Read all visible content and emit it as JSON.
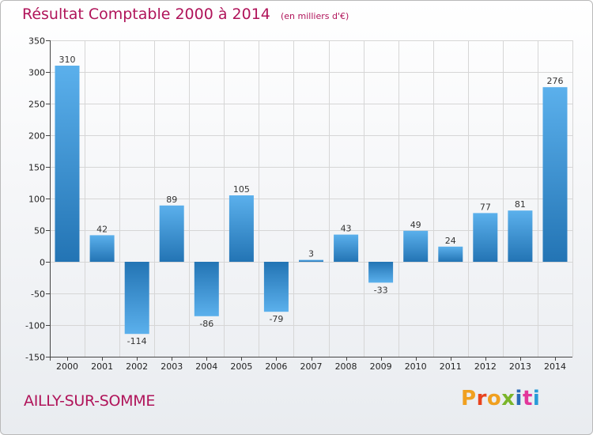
{
  "header": {
    "title": "Résultat Comptable 2000 à 2014",
    "subtitle": "(en milliers d'€)"
  },
  "footer": {
    "commune": "AILLY-SUR-SOMME",
    "brand_letters": [
      "P",
      "r",
      "o",
      "x",
      "i",
      "t",
      "i"
    ]
  },
  "colors": {
    "title": "#b0145a",
    "bar_light": "#5bb0ec",
    "bar_dark": "#2374b4",
    "grid": "#d6d6d6",
    "brand": [
      "#f0a020",
      "#e8431e",
      "#f0a020",
      "#7ab52a",
      "#2a6bb8",
      "#e2369a",
      "#2a9bd8"
    ]
  },
  "chart_data": {
    "type": "bar",
    "title": "Résultat Comptable 2000 à 2014",
    "subtitle": "(en milliers d'€)",
    "xlabel": "",
    "ylabel": "",
    "categories": [
      "2000",
      "2001",
      "2002",
      "2003",
      "2004",
      "2005",
      "2006",
      "2007",
      "2008",
      "2009",
      "2010",
      "2011",
      "2012",
      "2013",
      "2014"
    ],
    "values": [
      310,
      42,
      -114,
      89,
      -86,
      105,
      -79,
      3,
      43,
      -33,
      49,
      24,
      77,
      81,
      276
    ],
    "ylim": [
      -150,
      350
    ],
    "yticks": [
      -150,
      -100,
      -50,
      0,
      50,
      100,
      150,
      200,
      250,
      300,
      350
    ],
    "grid": true
  }
}
